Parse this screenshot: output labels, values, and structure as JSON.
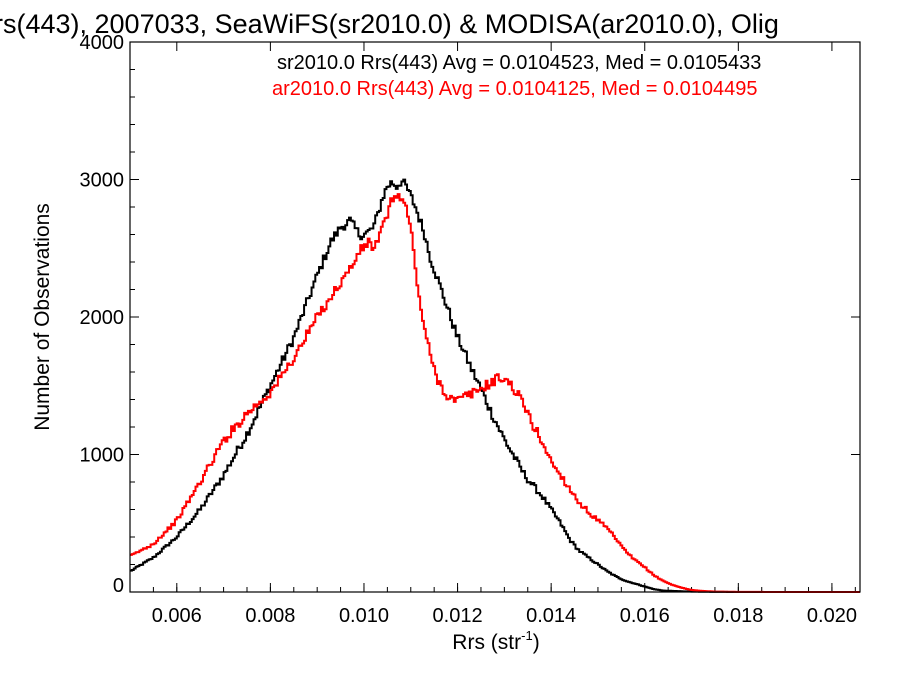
{
  "title": "rs(443), 2007033, SeaWiFS(sr2010.0) & MODISA(ar2010.0), Olig",
  "colors": {
    "background": "#ffffff",
    "axis": "#000000",
    "series_sr": "#000000",
    "series_ar": "#ff0000"
  },
  "chart_data": {
    "type": "line",
    "title": "rs(443), 2007033, SeaWiFS(sr2010.0) & MODISA(ar2010.0), Olig",
    "xlabel": "Rrs (str",
    "xlabel_sup": "-1",
    "xlabel_end": ")",
    "ylabel": "Number of Observations",
    "xlim": [
      0.005,
      0.0206
    ],
    "ylim": [
      0,
      4000
    ],
    "xticks": [
      0.006,
      0.008,
      0.01,
      0.012,
      0.014,
      0.016,
      0.018,
      0.02
    ],
    "xtick_labels": [
      "0.006",
      "0.008",
      "0.010",
      "0.012",
      "0.014",
      "0.016",
      "0.018",
      "0.020"
    ],
    "yticks": [
      0,
      1000,
      2000,
      3000,
      4000
    ],
    "ytick_labels": [
      "0",
      "1000",
      "2000",
      "3000",
      "4000"
    ],
    "step": "histogram",
    "annotations": [
      {
        "text": "sr2010.0 Rrs(443) Avg = 0.0104523, Med = 0.0105433",
        "color": "#000000"
      },
      {
        "text": "ar2010.0 Rrs(443) Avg = 0.0104125, Med = 0.0104495",
        "color": "#ff0000"
      }
    ],
    "x": [
      0.005,
      0.0055,
      0.006,
      0.0065,
      0.007,
      0.0075,
      0.008,
      0.0085,
      0.009,
      0.0093,
      0.0095,
      0.0097,
      0.0098,
      0.0099,
      0.01,
      0.0101,
      0.0102,
      0.0103,
      0.0104,
      0.0105,
      0.0106,
      0.0107,
      0.0108,
      0.0109,
      0.011,
      0.0111,
      0.0112,
      0.0113,
      0.0114,
      0.0115,
      0.0116,
      0.0117,
      0.0118,
      0.0119,
      0.012,
      0.0121,
      0.0122,
      0.0123,
      0.0124,
      0.0125,
      0.0126,
      0.0127,
      0.0128,
      0.0129,
      0.013,
      0.0131,
      0.0132,
      0.0133,
      0.0134,
      0.0135,
      0.0136,
      0.0138,
      0.014,
      0.0142,
      0.0144,
      0.0146,
      0.0148,
      0.015,
      0.0152,
      0.0154,
      0.0156,
      0.0158,
      0.016,
      0.0162,
      0.0164,
      0.0166,
      0.0168,
      0.017,
      0.0172,
      0.0175,
      0.018,
      0.019,
      0.0206
    ],
    "series": [
      {
        "name": "sr2010.0",
        "color": "#000000",
        "values": [
          150,
          250,
          400,
          600,
          850,
          1150,
          1500,
          1850,
          2300,
          2550,
          2650,
          2700,
          2650,
          2600,
          2600,
          2620,
          2650,
          2750,
          2870,
          2950,
          2980,
          2950,
          2990,
          2950,
          2880,
          2800,
          2700,
          2600,
          2450,
          2350,
          2250,
          2150,
          2050,
          1950,
          1850,
          1780,
          1700,
          1620,
          1550,
          1480,
          1400,
          1320,
          1250,
          1180,
          1110,
          1050,
          990,
          930,
          870,
          820,
          780,
          700,
          600,
          500,
          380,
          300,
          250,
          200,
          150,
          110,
          80,
          60,
          40,
          20,
          10,
          8,
          5,
          3,
          2,
          1,
          0,
          0,
          0
        ]
      },
      {
        "name": "ar2010.0",
        "color": "#ff0000",
        "values": [
          260,
          350,
          520,
          800,
          1100,
          1300,
          1450,
          1700,
          2000,
          2150,
          2250,
          2350,
          2400,
          2480,
          2500,
          2550,
          2500,
          2550,
          2650,
          2750,
          2850,
          2900,
          2850,
          2800,
          2650,
          2350,
          2100,
          1900,
          1750,
          1620,
          1530,
          1470,
          1420,
          1400,
          1390,
          1410,
          1430,
          1440,
          1460,
          1480,
          1500,
          1520,
          1540,
          1560,
          1550,
          1520,
          1480,
          1430,
          1370,
          1300,
          1220,
          1100,
          950,
          850,
          750,
          650,
          580,
          520,
          460,
          380,
          290,
          230,
          180,
          120,
          80,
          50,
          30,
          15,
          8,
          3,
          1,
          0,
          0
        ]
      }
    ]
  }
}
